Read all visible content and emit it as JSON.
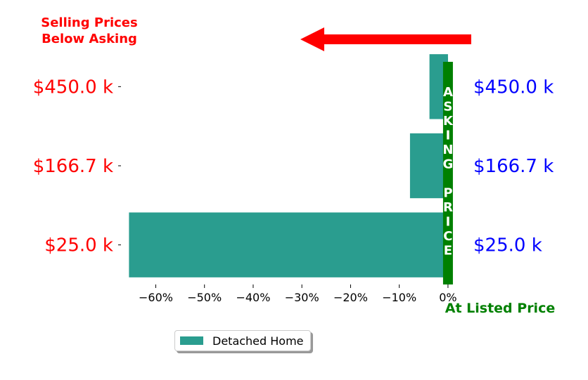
{
  "chart_data": {
    "type": "bar",
    "orientation": "horizontal",
    "categories": [
      "$25.0 k",
      "$166.7 k",
      "$450.0 k"
    ],
    "right_labels": [
      "$25.0 k",
      "$166.7 k",
      "$450.0 k"
    ],
    "series": [
      {
        "name": "Detached Home",
        "values": [
          -65.5,
          -7.8,
          -3.8
        ],
        "color": "#2a9d8f"
      }
    ],
    "extra_bar": {
      "category_index": 2,
      "value": -1.2
    },
    "xlim": [
      -67,
      1.6
    ],
    "xticks": [
      -60,
      -50,
      -40,
      -30,
      -20,
      -10,
      0
    ],
    "xtick_labels": [
      "−60%",
      "−50%",
      "−40%",
      "−30%",
      "−20%",
      "−10%",
      "0%"
    ],
    "reference_bar_label": [
      "A",
      "S",
      "K",
      "I",
      "N",
      "G",
      "",
      "P",
      "R",
      "I",
      "C",
      "E"
    ],
    "annotation_top_left": [
      "Selling Prices",
      "Below Asking"
    ],
    "annotation_bottom_right": "At Listed Price",
    "legend_position": "lower-center",
    "colors": {
      "left_labels": "#ff0000",
      "right_labels": "#0000ff",
      "reference_bar": "#008000",
      "arrow": "#ff0000",
      "top_left_text": "#ff0000",
      "bottom_right_text": "#008000"
    },
    "grid": false
  }
}
